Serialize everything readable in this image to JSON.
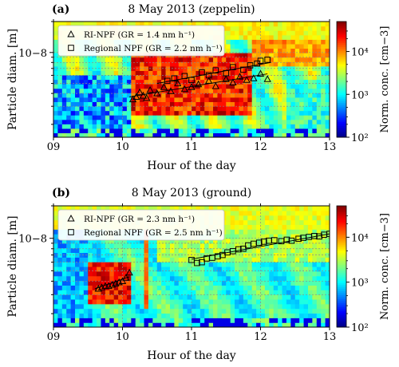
{
  "chart_data": [
    {
      "type": "heatmap",
      "panel_label": "(a)",
      "title": "8 May 2013 (zeppelin)",
      "xlabel": "Hour of the day",
      "ylabel": "Particle diam. [m]",
      "xlim": [
        9,
        13
      ],
      "x_ticks": [
        "09",
        "10",
        "11",
        "12",
        "13"
      ],
      "y_tick_label": "10−8",
      "colorbar": {
        "label": "Norm. conc. [cm−3]",
        "scale": "log",
        "range": [
          100,
          50000
        ],
        "ticks": [
          "10²",
          "10³",
          "10⁴"
        ],
        "colormap": "jet"
      },
      "legend": {
        "placement": "top-left",
        "entries": [
          {
            "marker": "triangle",
            "label": "RI-NPF (GR = 1.4 nm h⁻¹)"
          },
          {
            "marker": "square",
            "label": "Regional NPF (GR = 2.2 nm h⁻¹)"
          }
        ]
      },
      "grid": true,
      "series": [
        {
          "name": "RI-NPF",
          "marker": "triangle",
          "x": [
            10.15,
            10.2,
            10.25,
            10.3,
            10.35,
            10.4,
            10.5,
            10.6,
            10.7,
            10.8,
            10.9,
            11.0,
            11.1,
            11.25,
            11.35,
            11.5,
            11.6,
            11.7,
            11.8,
            11.9,
            12.0,
            12.1
          ],
          "y": [
            3.5,
            3.7,
            4.1,
            3.8,
            3.6,
            4.3,
            4.0,
            4.6,
            4.2,
            5.0,
            4.4,
            4.6,
            4.9,
            5.3,
            4.7,
            5.5,
            5.1,
            5.8,
            5.4,
            5.6,
            6.2,
            5.5
          ],
          "fit_line": {
            "x": [
              10.1,
              12.1
            ],
            "y": [
              3.7,
              6.2
            ]
          }
        },
        {
          "name": "Regional NPF",
          "marker": "square",
          "x": [
            10.65,
            10.75,
            10.9,
            11.0,
            11.15,
            11.25,
            11.35,
            11.5,
            11.6,
            11.75,
            11.85,
            11.95,
            12.0,
            12.1
          ],
          "y": [
            5.3,
            5.6,
            5.9,
            5.4,
            6.4,
            6.0,
            6.7,
            6.3,
            7.2,
            6.8,
            7.5,
            7.8,
            8.3,
            8.5
          ],
          "fit_line": {
            "x": [
              10.5,
              12.15
            ],
            "y": [
              5.0,
              8.0
            ]
          }
        }
      ]
    },
    {
      "type": "heatmap",
      "panel_label": "(b)",
      "title": "8 May 2013 (ground)",
      "xlabel": "Hour of the day",
      "ylabel": "Particle diam. [m]",
      "xlim": [
        9,
        13
      ],
      "x_ticks": [
        "09",
        "10",
        "11",
        "12",
        "13"
      ],
      "y_tick_label": "10−8",
      "colorbar": {
        "label": "Norm. conc. [cm−3]",
        "scale": "log",
        "range": [
          100,
          50000
        ],
        "ticks": [
          "10²",
          "10³",
          "10⁴"
        ],
        "colormap": "jet"
      },
      "legend": {
        "placement": "top-left",
        "entries": [
          {
            "marker": "triangle",
            "label": "RI-NPF (GR = 2.3 nm h⁻¹)"
          },
          {
            "marker": "square",
            "label": "Regional NPF (GR = 2.5 nm h⁻¹)"
          }
        ]
      },
      "grid": true,
      "series": [
        {
          "name": "RI-NPF",
          "marker": "triangle",
          "x": [
            9.65,
            9.7,
            9.75,
            9.8,
            9.85,
            9.9,
            9.95,
            10.0,
            10.05,
            10.1
          ],
          "y": [
            3.4,
            3.5,
            3.6,
            3.6,
            3.7,
            3.8,
            3.9,
            4.0,
            4.3,
            4.8
          ],
          "fit_line": {
            "x": [
              9.6,
              10.1
            ],
            "y": [
              3.4,
              4.4
            ]
          }
        },
        {
          "name": "Regional NPF",
          "marker": "square",
          "x": [
            11.0,
            11.08,
            11.15,
            11.22,
            11.3,
            11.38,
            11.45,
            11.52,
            11.6,
            11.68,
            11.75,
            11.82,
            11.9,
            11.98,
            12.05,
            12.12,
            12.2,
            12.3,
            12.38,
            12.45,
            12.55,
            12.62,
            12.7,
            12.78,
            12.85,
            12.92,
            13.0
          ],
          "y": [
            6.3,
            5.9,
            6.0,
            6.5,
            6.6,
            6.8,
            7.0,
            7.4,
            7.6,
            7.9,
            8.0,
            8.6,
            8.9,
            9.1,
            9.3,
            9.5,
            9.6,
            9.4,
            9.7,
            9.5,
            9.9,
            10.1,
            10.3,
            10.5,
            10.4,
            10.8,
            11.0
          ],
          "fit_line": {
            "x": [
              11.0,
              13.0
            ],
            "y": [
              6.4,
              11.0
            ]
          }
        }
      ]
    }
  ]
}
